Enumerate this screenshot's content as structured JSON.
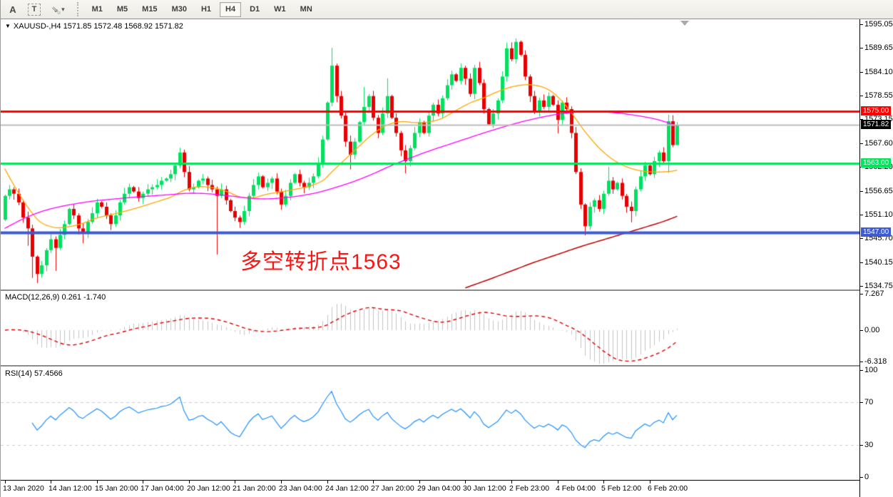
{
  "toolbar": {
    "text_tool": "A",
    "textbox_tool": "T",
    "arrows_glyph": "⇘",
    "arrows_dropdown": "▾",
    "timeframes": [
      "M1",
      "M5",
      "M15",
      "M30",
      "H1",
      "H4",
      "D1",
      "W1",
      "MN"
    ],
    "active_timeframe": "H4"
  },
  "chart_header": {
    "marker": "▼",
    "title": "XAUUSD-,H4 1571.85 1572.48 1568.92 1571.82"
  },
  "annotation": {
    "text": "多空转折点1563",
    "color": "#ff1414"
  },
  "price_axis": {
    "ticks": [
      "1595.05",
      "1589.65",
      "1584.10",
      "1578.55",
      "1573.15",
      "1567.60",
      "1562.20",
      "1556.65",
      "1551.10",
      "1545.70",
      "1540.15",
      "1534.75"
    ],
    "badges": [
      {
        "label": "1575.00",
        "bg": "#ff0000",
        "price": 1575.0
      },
      {
        "label": "1571.82",
        "bg": "#000000",
        "price": 1571.82
      },
      {
        "label": "1563.00",
        "bg": "#00e65c",
        "price": 1563.0
      },
      {
        "label": "1547.00",
        "bg": "#3d5ad3",
        "price": 1547.0
      }
    ]
  },
  "time_axis": {
    "labels": [
      "13 Jan 2020",
      "14 Jan 12:00",
      "15 Jan 20:00",
      "17 Jan 04:00",
      "20 Jan 12:00",
      "21 Jan 20:00",
      "23 Jan 04:00",
      "24 Jan 12:00",
      "27 Jan 20:00",
      "29 Jan 04:00",
      "30 Jan 12:00",
      "2 Feb 23:00",
      "4 Feb 04:00",
      "5 Feb 12:00",
      "6 Feb 20:00"
    ],
    "bars_per_label": 10
  },
  "indicators": {
    "macd": {
      "label": "MACD(12,26,9) 0.261 -1.740",
      "params": [
        12,
        26,
        9
      ],
      "values": [
        0.261,
        -1.74
      ],
      "axis": [
        "7.267",
        "0.00",
        "-6.318"
      ]
    },
    "rsi": {
      "label": "RSI(14) 57.4566",
      "period": 14,
      "value": 57.4566,
      "axis": [
        "100",
        "70",
        "30",
        "0"
      ],
      "levels": [
        70,
        30
      ]
    }
  },
  "chart_data": {
    "type": "candlestick",
    "symbol": "XAUUSD-",
    "timeframe": "H4",
    "last_ohlc": {
      "open": 1571.85,
      "high": 1572.48,
      "low": 1568.92,
      "close": 1571.82
    },
    "price_axis_range": [
      1534.75,
      1595.05
    ],
    "first_open": 1550.0,
    "closes": [
      1555.5,
      1557,
      1556,
      1554,
      1550.5,
      1548,
      1541.5,
      1537.5,
      1539.5,
      1543,
      1545.5,
      1543.5,
      1546.5,
      1549,
      1552.5,
      1551,
      1548,
      1547,
      1549.5,
      1551.5,
      1554,
      1553,
      1551,
      1549,
      1551,
      1554,
      1556,
      1557.5,
      1556.5,
      1555,
      1556,
      1557,
      1557.5,
      1558,
      1559,
      1559.5,
      1560.5,
      1562.5,
      1565.5,
      1561,
      1557,
      1557.5,
      1559,
      1559.5,
      1558,
      1557,
      1555.5,
      1557,
      1554.5,
      1552,
      1550.5,
      1549.5,
      1552,
      1555.5,
      1558,
      1560,
      1557.5,
      1558.5,
      1559.5,
      1556.5,
      1553.5,
      1555.5,
      1558.5,
      1560.5,
      1558.5,
      1557.5,
      1558.5,
      1560,
      1563,
      1568.5,
      1577,
      1585.5,
      1578.5,
      1574,
      1568,
      1565,
      1568,
      1572.5,
      1576,
      1578.5,
      1573.5,
      1570,
      1574.5,
      1578.5,
      1573.5,
      1570,
      1566,
      1563.5,
      1566.5,
      1570,
      1572.5,
      1570,
      1574,
      1576.5,
      1574.5,
      1578,
      1581,
      1583.5,
      1582,
      1585,
      1582.5,
      1579,
      1585,
      1581.5,
      1575.5,
      1572,
      1574.5,
      1577.5,
      1583,
      1589.5,
      1587,
      1591,
      1588,
      1583,
      1578.5,
      1575,
      1577.5,
      1576,
      1578.5,
      1576.5,
      1573,
      1577,
      1575.5,
      1570,
      1561,
      1553.5,
      1548.5,
      1553,
      1554.5,
      1552.5,
      1556,
      1559,
      1557,
      1558.5,
      1555.5,
      1553,
      1552,
      1557,
      1560,
      1562.5,
      1560.5,
      1563.5,
      1565.5,
      1563.5,
      1572.7,
      1567.2,
      1571.82
    ],
    "wick_overrides": {
      "5": {
        "lo": 1544.0
      },
      "6": {
        "lo": 1536.6
      },
      "7": {
        "lo": 1535.4
      },
      "11": {
        "lo": 1538.2
      },
      "17": {
        "lo": 1544.6
      },
      "38": {
        "hi": 1566.6
      },
      "46": {
        "lo": 1542.0
      },
      "71": {
        "hi": 1589.6
      },
      "75": {
        "lo": 1561.6
      },
      "78": {
        "hi": 1580.6
      },
      "83": {
        "hi": 1582.6
      },
      "87": {
        "lo": 1560.7
      },
      "109": {
        "hi": 1590.8
      },
      "111": {
        "hi": 1591.8
      },
      "120": {
        "lo": 1569.9
      },
      "126": {
        "lo": 1546.4
      },
      "131": {
        "hi": 1562.2
      },
      "136": {
        "lo": 1549.4
      },
      "144": {
        "hi": 1574.2,
        "lo": 1560.8
      },
      "146": {
        "hi": 1572.5,
        "lo": 1568.9
      }
    },
    "h_lines": [
      {
        "price": 1575.0,
        "color": "#ff0000",
        "width": 3,
        "role": "resistance"
      },
      {
        "price": 1571.82,
        "color": "#bbbbbb",
        "width": 2,
        "role": "bid"
      },
      {
        "price": 1563.0,
        "color": "#00e65c",
        "width": 3,
        "role": "pivot"
      },
      {
        "price": 1547.0,
        "color": "#3d5ad3",
        "width": 4,
        "role": "support"
      }
    ],
    "overlays": [
      {
        "name": "ma-fast-orange",
        "color": "#ffa500",
        "points": [
          [
            0,
            1561.8
          ],
          [
            2,
            1558
          ],
          [
            4,
            1554.5
          ],
          [
            6,
            1551.5
          ],
          [
            8,
            1549.3
          ],
          [
            11,
            1548.2
          ],
          [
            14,
            1548.4
          ],
          [
            17,
            1549.2
          ],
          [
            20,
            1550.4
          ],
          [
            24,
            1551.4
          ],
          [
            28,
            1552.5
          ],
          [
            32,
            1553.8
          ],
          [
            36,
            1555.2
          ],
          [
            39,
            1556.8
          ],
          [
            42,
            1557.6
          ],
          [
            45,
            1557.4
          ],
          [
            48,
            1556.6
          ],
          [
            51,
            1555.3
          ],
          [
            54,
            1555.1
          ],
          [
            57,
            1555.9
          ],
          [
            60,
            1556.4
          ],
          [
            63,
            1557
          ],
          [
            66,
            1557.7
          ],
          [
            69,
            1559
          ],
          [
            71,
            1561
          ],
          [
            74,
            1564
          ],
          [
            77,
            1567
          ],
          [
            80,
            1569.8
          ],
          [
            83,
            1571.8
          ],
          [
            86,
            1572.6
          ],
          [
            89,
            1572.4
          ],
          [
            92,
            1572.5
          ],
          [
            95,
            1573.4
          ],
          [
            98,
            1575.2
          ],
          [
            101,
            1576.9
          ],
          [
            104,
            1578.1
          ],
          [
            107,
            1579.5
          ],
          [
            110,
            1580.6
          ],
          [
            113,
            1581.1
          ],
          [
            115,
            1581
          ],
          [
            117,
            1580.5
          ],
          [
            119,
            1579.3
          ],
          [
            121,
            1577.3
          ],
          [
            123,
            1574.7
          ],
          [
            126,
            1570.3
          ],
          [
            129,
            1566.6
          ],
          [
            132,
            1563.9
          ],
          [
            135,
            1562.2
          ],
          [
            138,
            1561.3
          ],
          [
            141,
            1561
          ],
          [
            144,
            1561.1
          ],
          [
            146,
            1561.4
          ]
        ]
      },
      {
        "name": "ma-mid-magenta",
        "color": "#ff00ff",
        "points": [
          [
            0,
            1548
          ],
          [
            4,
            1550.2
          ],
          [
            8,
            1551.9
          ],
          [
            12,
            1553
          ],
          [
            16,
            1553.8
          ],
          [
            20,
            1554.4
          ],
          [
            24,
            1554.8
          ],
          [
            28,
            1555.2
          ],
          [
            32,
            1555.5
          ],
          [
            36,
            1555.8
          ],
          [
            40,
            1556.1
          ],
          [
            44,
            1556
          ],
          [
            48,
            1555.6
          ],
          [
            52,
            1555.1
          ],
          [
            56,
            1554.8
          ],
          [
            60,
            1555
          ],
          [
            64,
            1555.5
          ],
          [
            68,
            1556.3
          ],
          [
            72,
            1557.5
          ],
          [
            76,
            1558.9
          ],
          [
            80,
            1560.6
          ],
          [
            84,
            1562.5
          ],
          [
            88,
            1564.2
          ],
          [
            92,
            1565.8
          ],
          [
            96,
            1567.2
          ],
          [
            100,
            1568.6
          ],
          [
            104,
            1570
          ],
          [
            108,
            1571.3
          ],
          [
            112,
            1572.5
          ],
          [
            116,
            1573.5
          ],
          [
            120,
            1574.3
          ],
          [
            124,
            1574.8
          ],
          [
            128,
            1574.9
          ],
          [
            132,
            1574.7
          ],
          [
            136,
            1574.2
          ],
          [
            140,
            1573.5
          ],
          [
            143,
            1572.7
          ],
          [
            146,
            1571.6
          ]
        ]
      },
      {
        "name": "ma-long-darkred",
        "color": "#c00000",
        "points": [
          [
            100,
            1534.3
          ],
          [
            105,
            1536.2
          ],
          [
            110,
            1538.2
          ],
          [
            115,
            1540.2
          ],
          [
            120,
            1542
          ],
          [
            125,
            1543.8
          ],
          [
            130,
            1545.4
          ],
          [
            135,
            1547
          ],
          [
            140,
            1548.6
          ],
          [
            143,
            1549.6
          ],
          [
            146,
            1550.8
          ]
        ]
      }
    ],
    "colors": {
      "bull": "#00e15f",
      "bear": "#e60000",
      "macd_hist": "#c4c4c4",
      "macd_signal": "#e00000",
      "rsi_line": "#1e90ff"
    }
  }
}
